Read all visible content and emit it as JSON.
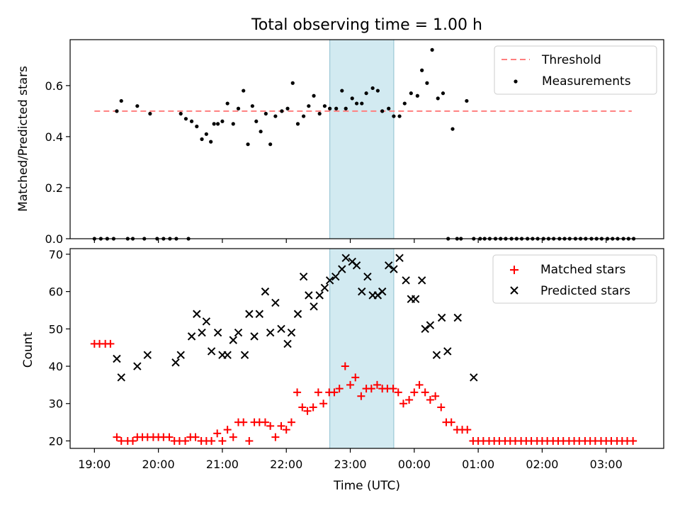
{
  "title": "Total observing time = 1.00 h",
  "colors": {
    "threshold": "#ff7f7f",
    "measurements": "#000000",
    "matched": "#ff0000",
    "predicted": "#000000",
    "highlight": "#add8e6"
  },
  "chart_data": [
    {
      "type": "scatter",
      "ylabel": "Matched/Predicted stars",
      "ylim": [
        0,
        0.78
      ],
      "yticks": [
        "0.0",
        "0.2",
        "0.4",
        "0.6"
      ],
      "yticks_values": [
        0.0,
        0.2,
        0.4,
        0.6
      ],
      "xlim_hours": [
        18.62,
        27.9
      ],
      "highlight_span_hours": [
        22.68,
        23.68
      ],
      "legend_location": "upper right",
      "threshold": {
        "name": "Threshold",
        "value": 0.5,
        "x_range_hours": [
          19.0,
          27.4
        ]
      },
      "series": [
        {
          "name": "Measurements",
          "x_hours": [
            19.0,
            19.1,
            19.2,
            19.3,
            19.35,
            19.42,
            19.52,
            19.6,
            19.67,
            19.78,
            19.87,
            19.98,
            20.08,
            20.18,
            20.28,
            20.35,
            20.43,
            20.47,
            20.52,
            20.6,
            20.68,
            20.75,
            20.82,
            20.87,
            20.93,
            21.0,
            21.08,
            21.17,
            21.25,
            21.33,
            21.4,
            21.47,
            21.53,
            21.6,
            21.68,
            21.75,
            21.83,
            21.93,
            22.02,
            22.1,
            22.18,
            22.27,
            22.35,
            22.43,
            22.52,
            22.6,
            22.68,
            22.78,
            22.87,
            22.93,
            23.03,
            23.1,
            23.18,
            23.25,
            23.35,
            23.43,
            23.5,
            23.6,
            23.68,
            23.77,
            23.85,
            23.95,
            24.05,
            24.12,
            24.2,
            24.28,
            24.37,
            24.45,
            24.53,
            24.6,
            24.67,
            24.73,
            24.82,
            24.93,
            25.03,
            25.1,
            25.18,
            25.27,
            25.35,
            25.43,
            25.52,
            25.6,
            25.68,
            25.77,
            25.85,
            25.93,
            26.02,
            26.1,
            26.18,
            26.27,
            26.35,
            26.43,
            26.52,
            26.6,
            26.68,
            26.77,
            26.85,
            26.93,
            27.02,
            27.1,
            27.18,
            27.27,
            27.35,
            27.43
          ],
          "y": [
            0,
            0,
            0,
            0,
            0.5,
            0.54,
            0,
            0,
            0.52,
            0,
            0.49,
            0,
            0,
            0,
            0,
            0.49,
            0.47,
            0,
            0.46,
            0.44,
            0.39,
            0.41,
            0.38,
            0.45,
            0.45,
            0.46,
            0.53,
            0.45,
            0.51,
            0.58,
            0.37,
            0.52,
            0.46,
            0.42,
            0.49,
            0.37,
            0.48,
            0.5,
            0.51,
            0.61,
            0.45,
            0.48,
            0.52,
            0.56,
            0.49,
            0.52,
            0.51,
            0.51,
            0.58,
            0.51,
            0.55,
            0.53,
            0.53,
            0.57,
            0.59,
            0.58,
            0.5,
            0.51,
            0.48,
            0.48,
            0.53,
            0.57,
            0.56,
            0.66,
            0.61,
            0.74,
            0.55,
            0.57,
            0,
            0.43,
            0,
            0,
            0.54,
            0,
            0,
            0,
            0,
            0,
            0,
            0,
            0,
            0,
            0,
            0,
            0,
            0,
            0,
            0,
            0,
            0,
            0,
            0,
            0,
            0,
            0,
            0,
            0,
            0,
            0,
            0,
            0,
            0,
            0,
            0
          ]
        }
      ]
    },
    {
      "type": "scatter",
      "xlabel": "Time (UTC)",
      "ylabel": "Count",
      "ylim": [
        18,
        71.5
      ],
      "yticks": [
        "20",
        "30",
        "40",
        "50",
        "60",
        "70"
      ],
      "yticks_values": [
        20,
        30,
        40,
        50,
        60,
        70
      ],
      "xticks": [
        "19:00",
        "20:00",
        "21:00",
        "22:00",
        "23:00",
        "00:00",
        "01:00",
        "02:00",
        "03:00"
      ],
      "xticks_hours": [
        19,
        20,
        21,
        22,
        23,
        24,
        25,
        26,
        27
      ],
      "xlim_hours": [
        18.62,
        27.9
      ],
      "highlight_span_hours": [
        22.68,
        23.68
      ],
      "legend_location": "upper right",
      "series": [
        {
          "name": "Matched stars",
          "marker": "+",
          "x_hours": [
            19.0,
            19.08,
            19.17,
            19.25,
            19.35,
            19.42,
            19.52,
            19.6,
            19.67,
            19.75,
            19.83,
            19.92,
            20.0,
            20.08,
            20.17,
            20.25,
            20.33,
            20.42,
            20.5,
            20.58,
            20.67,
            20.75,
            20.83,
            20.92,
            21.0,
            21.08,
            21.17,
            21.25,
            21.33,
            21.42,
            21.5,
            21.58,
            21.67,
            21.75,
            21.83,
            21.92,
            22.0,
            22.08,
            22.17,
            22.25,
            22.33,
            22.42,
            22.5,
            22.58,
            22.67,
            22.75,
            22.83,
            22.92,
            23.0,
            23.08,
            23.17,
            23.25,
            23.33,
            23.42,
            23.5,
            23.58,
            23.67,
            23.75,
            23.83,
            23.92,
            24.0,
            24.08,
            24.17,
            24.25,
            24.33,
            24.42,
            24.5,
            24.58,
            24.67,
            24.75,
            24.83,
            24.92,
            25.0,
            25.08,
            25.17,
            25.25,
            25.33,
            25.42,
            25.5,
            25.58,
            25.67,
            25.75,
            25.83,
            25.92,
            26.0,
            26.08,
            26.17,
            26.25,
            26.33,
            26.42,
            26.5,
            26.58,
            26.67,
            26.75,
            26.83,
            26.92,
            27.0,
            27.08,
            27.17,
            27.25,
            27.33,
            27.42
          ],
          "y": [
            46,
            46,
            46,
            46,
            21,
            20,
            20,
            20,
            21,
            21,
            21,
            21,
            21,
            21,
            21,
            20,
            20,
            20,
            21,
            21,
            20,
            20,
            20,
            22,
            20,
            23,
            21,
            25,
            25,
            20,
            25,
            25,
            25,
            24,
            21,
            24,
            23,
            25,
            33,
            29,
            28,
            29,
            33,
            30,
            33,
            33,
            34,
            40,
            35,
            37,
            32,
            34,
            34,
            35,
            34,
            34,
            34,
            33,
            30,
            31,
            33,
            35,
            33,
            31,
            32,
            29,
            25,
            25,
            23,
            23,
            23,
            20,
            20,
            20,
            20,
            20,
            20,
            20,
            20,
            20,
            20,
            20,
            20,
            20,
            20,
            20,
            20,
            20,
            20,
            20,
            20,
            20,
            20,
            20,
            20,
            20,
            20,
            20,
            20,
            20,
            20,
            20
          ]
        },
        {
          "name": "Predicted stars",
          "marker": "x",
          "x_hours": [
            19.35,
            19.42,
            19.67,
            19.83,
            20.27,
            20.35,
            20.52,
            20.6,
            20.68,
            20.75,
            20.83,
            20.93,
            21.0,
            21.08,
            21.17,
            21.25,
            21.35,
            21.42,
            21.5,
            21.58,
            21.67,
            21.75,
            21.83,
            21.92,
            22.02,
            22.08,
            22.18,
            22.27,
            22.35,
            22.43,
            22.52,
            22.6,
            22.68,
            22.77,
            22.87,
            22.93,
            23.03,
            23.1,
            23.18,
            23.27,
            23.35,
            23.43,
            23.5,
            23.6,
            23.68,
            23.77,
            23.87,
            23.95,
            24.02,
            24.12,
            24.17,
            24.25,
            24.35,
            24.43,
            24.52,
            24.68,
            24.93
          ],
          "y": [
            42,
            37,
            40,
            43,
            41,
            43,
            48,
            54,
            49,
            52,
            44,
            49,
            43,
            43,
            47,
            49,
            43,
            54,
            48,
            54,
            60,
            49,
            57,
            50,
            46,
            49,
            54,
            64,
            59,
            56,
            59,
            61,
            63,
            64,
            66,
            69,
            68,
            67,
            60,
            64,
            59,
            59,
            60,
            67,
            66,
            69,
            63,
            58,
            58,
            63,
            50,
            51,
            43,
            53,
            44,
            53,
            37
          ]
        }
      ]
    }
  ]
}
